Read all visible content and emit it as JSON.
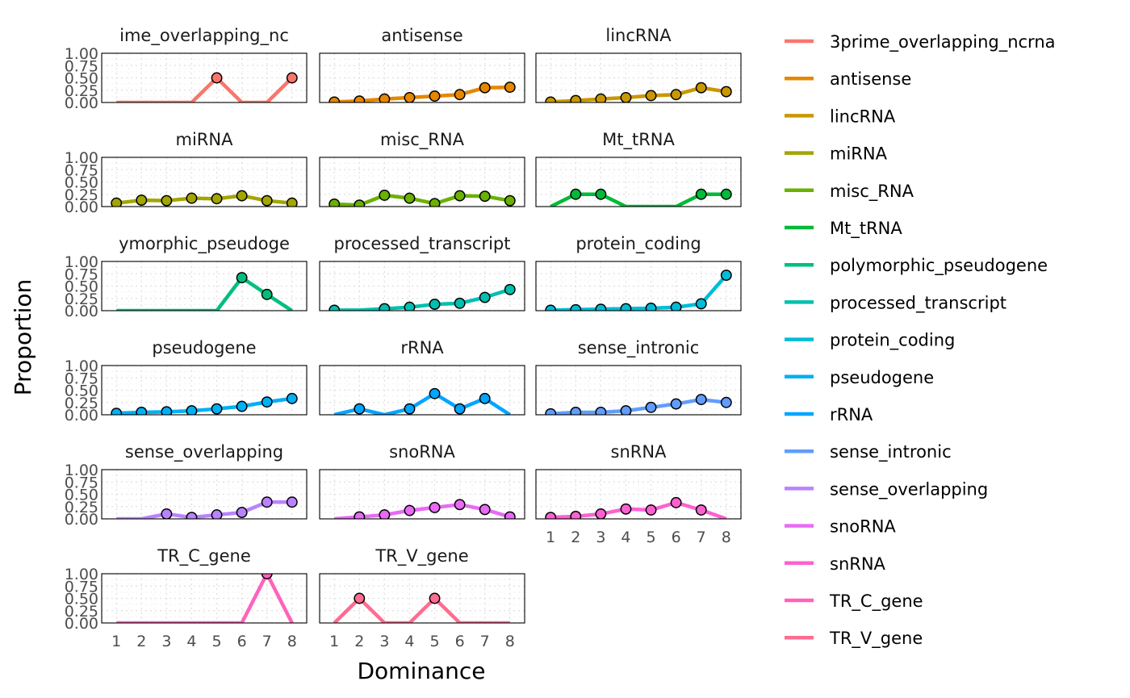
{
  "chart_data": {
    "type": "line",
    "xlabel": "Dominance",
    "ylabel": "Proportion",
    "x": [
      1,
      2,
      3,
      4,
      5,
      6,
      7,
      8
    ],
    "x_tick_labels": [
      "1",
      "2",
      "3",
      "4",
      "5",
      "6",
      "7",
      "8"
    ],
    "ylim": [
      0,
      1
    ],
    "y_tick_labels": [
      "0.00",
      "0.25",
      "0.50",
      "0.75",
      "1.00"
    ],
    "grid": true,
    "legend_position": "right",
    "panels": [
      {
        "name": "3prime_overlapping_ncrna",
        "title": "ime_overlapping_nc",
        "color": "#F8766D",
        "values": [
          0,
          0,
          0,
          0,
          0.5,
          0,
          0,
          0.5
        ],
        "points": [
          5,
          8
        ]
      },
      {
        "name": "antisense",
        "title": "antisense",
        "color": "#E58700",
        "values": [
          0.01,
          0.03,
          0.07,
          0.1,
          0.13,
          0.16,
          0.3,
          0.31
        ],
        "points": [
          1,
          2,
          3,
          4,
          5,
          6,
          7,
          8
        ]
      },
      {
        "name": "lincRNA",
        "title": "lincRNA",
        "color": "#C99800",
        "values": [
          0.01,
          0.04,
          0.07,
          0.1,
          0.14,
          0.16,
          0.3,
          0.22
        ],
        "points": [
          1,
          2,
          3,
          4,
          5,
          6,
          7,
          8
        ]
      },
      {
        "name": "miRNA",
        "title": "miRNA",
        "color": "#A3A500",
        "values": [
          0.07,
          0.13,
          0.12,
          0.17,
          0.16,
          0.22,
          0.12,
          0.07
        ],
        "points": [
          1,
          2,
          3,
          4,
          5,
          6,
          7,
          8
        ]
      },
      {
        "name": "misc_RNA",
        "title": "misc_RNA",
        "color": "#6BB100",
        "values": [
          0.05,
          0.03,
          0.23,
          0.17,
          0.06,
          0.22,
          0.21,
          0.12
        ],
        "points": [
          1,
          2,
          3,
          4,
          5,
          6,
          7,
          8
        ]
      },
      {
        "name": "Mt_tRNA",
        "title": "Mt_tRNA",
        "color": "#00BA38",
        "values": [
          0,
          0.25,
          0.25,
          0,
          0,
          0,
          0.25,
          0.25
        ],
        "points": [
          2,
          3,
          7,
          8
        ]
      },
      {
        "name": "polymorphic_pseudogene",
        "title": "ymorphic_pseudoge",
        "color": "#00BF7D",
        "values": [
          0,
          0,
          0,
          0,
          0,
          0.67,
          0.33,
          0
        ],
        "points": [
          6,
          7
        ]
      },
      {
        "name": "processed_transcript",
        "title": "processed_transcript",
        "color": "#00C0AF",
        "values": [
          0.01,
          0.01,
          0.04,
          0.07,
          0.13,
          0.15,
          0.27,
          0.43
        ],
        "points": [
          1,
          3,
          4,
          5,
          6,
          7,
          8
        ]
      },
      {
        "name": "protein_coding",
        "title": "protein_coding",
        "color": "#00BCD8",
        "values": [
          0.01,
          0.02,
          0.03,
          0.04,
          0.05,
          0.07,
          0.14,
          0.72
        ],
        "points": [
          1,
          2,
          3,
          4,
          5,
          6,
          7,
          8
        ]
      },
      {
        "name": "pseudogene",
        "title": "pseudogene",
        "color": "#00B0F6",
        "values": [
          0.03,
          0.05,
          0.06,
          0.08,
          0.12,
          0.17,
          0.26,
          0.33
        ],
        "points": [
          1,
          2,
          3,
          4,
          5,
          6,
          7,
          8
        ]
      },
      {
        "name": "rRNA",
        "title": "rRNA",
        "color": "#00A5FF",
        "values": [
          0,
          0.12,
          0,
          0.12,
          0.43,
          0.12,
          0.33,
          0
        ],
        "points": [
          2,
          4,
          5,
          6,
          7
        ]
      },
      {
        "name": "sense_intronic",
        "title": "sense_intronic",
        "color": "#619CFF",
        "values": [
          0.02,
          0.05,
          0.05,
          0.08,
          0.15,
          0.22,
          0.31,
          0.25
        ],
        "points": [
          1,
          2,
          3,
          4,
          5,
          6,
          7,
          8
        ]
      },
      {
        "name": "sense_overlapping",
        "title": "sense_overlapping",
        "color": "#B983FF",
        "values": [
          0,
          0,
          0.1,
          0.03,
          0.08,
          0.13,
          0.34,
          0.34
        ],
        "points": [
          3,
          4,
          5,
          6,
          7,
          8
        ]
      },
      {
        "name": "snoRNA",
        "title": "snoRNA",
        "color": "#E76BF3",
        "values": [
          0,
          0.04,
          0.08,
          0.17,
          0.23,
          0.29,
          0.19,
          0.04
        ],
        "points": [
          2,
          3,
          4,
          5,
          6,
          7,
          8
        ]
      },
      {
        "name": "snRNA",
        "title": "snRNA",
        "color": "#FD61D1",
        "values": [
          0.03,
          0.05,
          0.1,
          0.2,
          0.18,
          0.33,
          0.18,
          0
        ],
        "points": [
          1,
          2,
          3,
          4,
          5,
          6,
          7
        ]
      },
      {
        "name": "TR_C_gene",
        "title": "TR_C_gene",
        "color": "#FF62BC",
        "values": [
          0,
          0,
          0,
          0,
          0,
          0,
          1,
          0
        ],
        "points": [
          7
        ]
      },
      {
        "name": "TR_V_gene",
        "title": "TR_V_gene",
        "color": "#FF6C91",
        "values": [
          0,
          0.5,
          0,
          0,
          0.5,
          0,
          0,
          0
        ],
        "points": [
          2,
          5
        ]
      }
    ]
  }
}
